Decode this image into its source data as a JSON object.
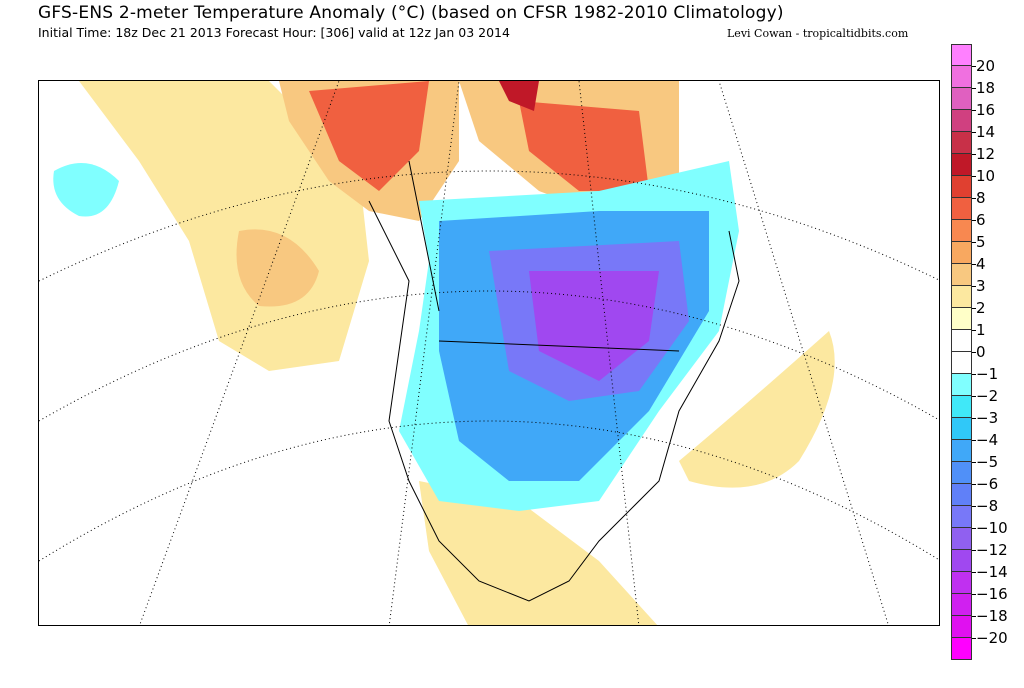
{
  "header": {
    "title": "GFS-ENS 2-meter Temperature Anomaly (°C) (based on CFSR 1982-2010 Climatology)",
    "subtitle": "Initial Time: 18z Dec 21 2013 Forecast Hour: [306] valid at 12z Jan 03 2014",
    "credit": "Levi Cowan - tropicaltidbits.com"
  },
  "colorbar": {
    "labels": [
      "20",
      "18",
      "16",
      "14",
      "12",
      "10",
      "8",
      "6",
      "5",
      "4",
      "3",
      "2",
      "1",
      "0",
      "−1",
      "−2",
      "−3",
      "−4",
      "−5",
      "−6",
      "−8",
      "−10",
      "−12",
      "−14",
      "−16",
      "−18",
      "−20"
    ],
    "colors": [
      "#ff80ff",
      "#f070e0",
      "#e060c0",
      "#d04080",
      "#c83048",
      "#c01828",
      "#e04030",
      "#f06040",
      "#f88850",
      "#f8a860",
      "#f8c880",
      "#fce8a0",
      "#ffffc8",
      "#ffffff",
      "#ffffff",
      "#80ffff",
      "#40e8f8",
      "#30c8f8",
      "#40a8f8",
      "#5090f8",
      "#6080f8",
      "#7878f8",
      "#9060f0",
      "#a048f0",
      "#c030f0",
      "#d020f0",
      "#e010f0",
      "#ff00ff"
    ]
  }
}
